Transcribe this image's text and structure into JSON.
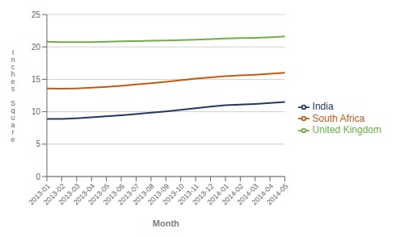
{
  "chart_data": {
    "type": "line",
    "categories": [
      "2013-01",
      "2013-02",
      "2013-03",
      "2013-04",
      "2013-05",
      "2013-06",
      "2013-07",
      "2013-08",
      "2013-09",
      "2013-10",
      "2013-11",
      "2013-12",
      "2014-01",
      "2014-02",
      "2014-03",
      "2014-04",
      "2014-05"
    ],
    "series": [
      {
        "name": "India",
        "color": "#1f3864",
        "values": [
          8.9,
          8.9,
          9.0,
          9.15,
          9.3,
          9.45,
          9.65,
          9.85,
          10.05,
          10.3,
          10.55,
          10.8,
          11.0,
          11.1,
          11.2,
          11.35,
          11.5
        ]
      },
      {
        "name": "South Africa",
        "color": "#c55a11",
        "values": [
          13.6,
          13.55,
          13.6,
          13.7,
          13.85,
          14.0,
          14.2,
          14.4,
          14.6,
          14.85,
          15.1,
          15.3,
          15.5,
          15.6,
          15.7,
          15.85,
          16.0
        ]
      },
      {
        "name": "United Kingdom",
        "color": "#70ad47",
        "values": [
          20.8,
          20.75,
          20.75,
          20.75,
          20.8,
          20.85,
          20.9,
          20.95,
          21.0,
          21.05,
          21.1,
          21.2,
          21.3,
          21.35,
          21.4,
          21.5,
          21.6
        ]
      }
    ],
    "y_label": "I\nn\nc\nh\ne\ns\n \nS\nq\nu\na\nr\ne",
    "x_label": "Month",
    "ylim": [
      0,
      25
    ],
    "yticks": [
      0,
      5,
      10,
      15,
      20,
      25
    ],
    "grid": "y",
    "legend": "right"
  }
}
